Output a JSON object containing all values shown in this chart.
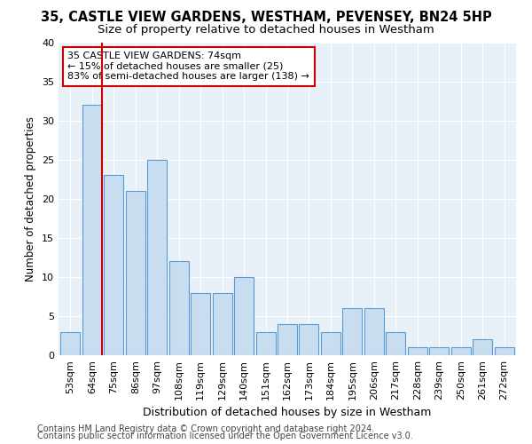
{
  "title1": "35, CASTLE VIEW GARDENS, WESTHAM, PEVENSEY, BN24 5HP",
  "title2": "Size of property relative to detached houses in Westham",
  "xlabel": "Distribution of detached houses by size in Westham",
  "ylabel": "Number of detached properties",
  "categories": [
    "53sqm",
    "64sqm",
    "75sqm",
    "86sqm",
    "97sqm",
    "108sqm",
    "119sqm",
    "129sqm",
    "140sqm",
    "151sqm",
    "162sqm",
    "173sqm",
    "184sqm",
    "195sqm",
    "206sqm",
    "217sqm",
    "228sqm",
    "239sqm",
    "250sqm",
    "261sqm",
    "272sqm"
  ],
  "values": [
    3,
    32,
    23,
    21,
    25,
    12,
    8,
    8,
    10,
    3,
    4,
    4,
    3,
    6,
    6,
    3,
    1,
    1,
    1,
    2,
    1
  ],
  "bar_color": "#c9ddf0",
  "bar_edge_color": "#5b9bd5",
  "highlight_line_color": "#cc0000",
  "annotation_text": "35 CASTLE VIEW GARDENS: 74sqm\n← 15% of detached houses are smaller (25)\n83% of semi-detached houses are larger (138) →",
  "annotation_box_color": "#cc0000",
  "ylim": [
    0,
    40
  ],
  "yticks": [
    0,
    5,
    10,
    15,
    20,
    25,
    30,
    35,
    40
  ],
  "footer1": "Contains HM Land Registry data © Crown copyright and database right 2024.",
  "footer2": "Contains public sector information licensed under the Open Government Licence v3.0.",
  "plot_bg_color": "#e8f0f8",
  "title1_fontsize": 10.5,
  "title2_fontsize": 9.5,
  "xlabel_fontsize": 9,
  "ylabel_fontsize": 8.5,
  "tick_fontsize": 8,
  "annotation_fontsize": 8,
  "footer_fontsize": 7
}
